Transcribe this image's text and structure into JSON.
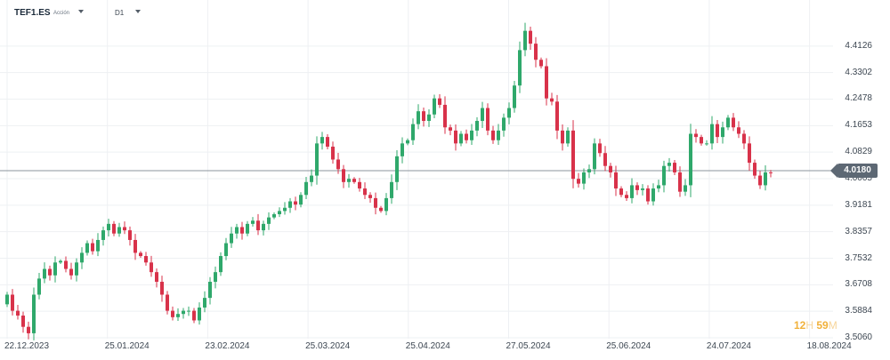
{
  "toolbar": {
    "symbol": "TEF1.ES",
    "instrument_type": "Acción",
    "timeframe": "D1"
  },
  "current_price_label": "4.0180",
  "countdown": {
    "hours": "12",
    "hours_unit": "H",
    "minutes": "59",
    "minutes_unit": "M"
  },
  "colors": {
    "up": "#2fa86b",
    "down": "#d8324a",
    "grid": "#eef0f3",
    "price_line": "#8b949c",
    "badge": "#5d6874",
    "countdown": "#f1b13a"
  },
  "chart_data": {
    "type": "candlestick",
    "title": "",
    "xlabel": "",
    "ylabel": "",
    "ylim": [
      3.506,
      4.495
    ],
    "y_ticks": [
      "4.4126",
      "4.3302",
      "4.2478",
      "4.1653",
      "4.0829",
      "4.0005",
      "3.9181",
      "3.8357",
      "3.7532",
      "3.6708",
      "3.5884",
      "3.5060"
    ],
    "x_ticks": [
      "22.12.2023",
      "25.01.2024",
      "23.02.2024",
      "25.03.2024",
      "25.04.2024",
      "27.05.2024",
      "25.06.2024",
      "24.07.2024",
      "18.08.2024"
    ],
    "current_price": 4.018,
    "grid": true,
    "closes": [
      3.64,
      3.59,
      3.575,
      3.54,
      3.52,
      3.64,
      3.69,
      3.72,
      3.7,
      3.74,
      3.745,
      3.72,
      3.7,
      3.74,
      3.77,
      3.8,
      3.775,
      3.81,
      3.84,
      3.86,
      3.83,
      3.85,
      3.84,
      3.81,
      3.77,
      3.76,
      3.74,
      3.71,
      3.68,
      3.64,
      3.59,
      3.57,
      3.58,
      3.59,
      3.59,
      3.56,
      3.6,
      3.63,
      3.68,
      3.71,
      3.76,
      3.8,
      3.83,
      3.85,
      3.83,
      3.86,
      3.87,
      3.84,
      3.86,
      3.88,
      3.89,
      3.9,
      3.91,
      3.93,
      3.92,
      3.95,
      3.99,
      4.01,
      4.11,
      4.13,
      4.1,
      4.06,
      4.03,
      3.99,
      4.0,
      3.99,
      3.97,
      3.95,
      3.94,
      3.91,
      3.9,
      3.94,
      3.99,
      4.07,
      4.11,
      4.12,
      4.17,
      4.21,
      4.18,
      4.2,
      4.25,
      4.23,
      4.16,
      4.15,
      4.11,
      4.14,
      4.12,
      4.15,
      4.18,
      4.22,
      4.15,
      4.12,
      4.15,
      4.19,
      4.22,
      4.29,
      4.4,
      4.46,
      4.42,
      4.37,
      4.35,
      4.25,
      4.24,
      4.15,
      4.11,
      4.15,
      4.0,
      3.985,
      4.02,
      4.03,
      4.11,
      4.08,
      4.04,
      4.02,
      3.97,
      3.95,
      3.94,
      3.98,
      3.965,
      3.97,
      3.93,
      3.97,
      3.98,
      4.04,
      4.05,
      4.02,
      3.96,
      3.98,
      4.14,
      4.13,
      4.11,
      4.11,
      4.17,
      4.13,
      4.16,
      4.19,
      4.16,
      4.14,
      4.11,
      4.05,
      4.01,
      3.98,
      4.02,
      4.018
    ],
    "series": [
      {
        "name": "TEF1.ES",
        "values": [
          3.64,
          3.59,
          3.575,
          3.54,
          3.52,
          3.64,
          3.69,
          3.72,
          3.7,
          3.74,
          3.745,
          3.72,
          3.7,
          3.74,
          3.77,
          3.8,
          3.775,
          3.81,
          3.84,
          3.86,
          3.83,
          3.85,
          3.84,
          3.81,
          3.77,
          3.76,
          3.74,
          3.71,
          3.68,
          3.64,
          3.59,
          3.57,
          3.58,
          3.59,
          3.59,
          3.56,
          3.6,
          3.63,
          3.68,
          3.71,
          3.76,
          3.8,
          3.83,
          3.85,
          3.83,
          3.86,
          3.87,
          3.84,
          3.86,
          3.88,
          3.89,
          3.9,
          3.91,
          3.93,
          3.92,
          3.95,
          3.99,
          4.01,
          4.11,
          4.13,
          4.1,
          4.06,
          4.03,
          3.99,
          4.0,
          3.99,
          3.97,
          3.95,
          3.94,
          3.91,
          3.9,
          3.94,
          3.99,
          4.07,
          4.11,
          4.12,
          4.17,
          4.21,
          4.18,
          4.2,
          4.25,
          4.23,
          4.16,
          4.15,
          4.11,
          4.14,
          4.12,
          4.15,
          4.18,
          4.22,
          4.15,
          4.12,
          4.15,
          4.19,
          4.22,
          4.29,
          4.4,
          4.46,
          4.42,
          4.37,
          4.35,
          4.25,
          4.24,
          4.15,
          4.11,
          4.15,
          4.0,
          3.985,
          4.02,
          4.03,
          4.11,
          4.08,
          4.04,
          4.02,
          3.97,
          3.95,
          3.94,
          3.98,
          3.965,
          3.97,
          3.93,
          3.97,
          3.98,
          4.04,
          4.05,
          4.02,
          3.96,
          3.98,
          4.14,
          4.13,
          4.11,
          4.11,
          4.17,
          4.13,
          4.16,
          4.19,
          4.16,
          4.14,
          4.11,
          4.05,
          4.01,
          3.98,
          4.02,
          4.018
        ]
      }
    ]
  }
}
